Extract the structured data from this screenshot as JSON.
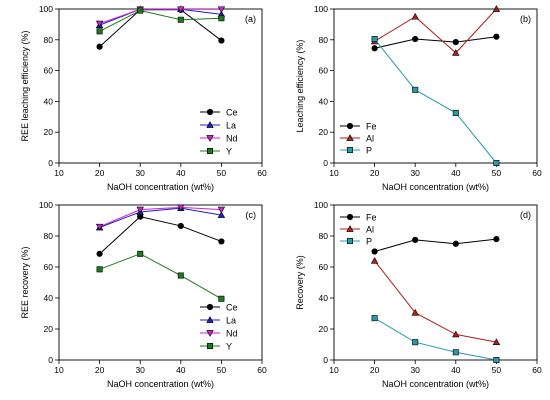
{
  "chart_data": [
    {
      "type": "line",
      "panel_label": "(a)",
      "xlabel": "NaOH concentration (wt%)",
      "ylabel": "REE leaching efficiency (%)",
      "xlim": [
        10,
        60
      ],
      "ylim": [
        0,
        100
      ],
      "xticks": [
        10,
        20,
        30,
        40,
        50,
        60
      ],
      "yticks": [
        0,
        20,
        40,
        60,
        80,
        100
      ],
      "x": [
        20,
        30,
        40,
        50
      ],
      "legend_position": "bottom-right",
      "series": [
        {
          "name": "Ce",
          "values": [
            75.5,
            99.5,
            99.5,
            79.5
          ],
          "color": "#000000",
          "marker": "circle"
        },
        {
          "name": "La",
          "values": [
            89.5,
            99.8,
            99.8,
            96.5
          ],
          "color": "#1f1fc8",
          "marker": "triangle-up"
        },
        {
          "name": "Nd",
          "values": [
            90.5,
            99.8,
            99.8,
            99.8
          ],
          "color": "#cc22cc",
          "marker": "triangle-down"
        },
        {
          "name": "Y",
          "values": [
            85.5,
            99.0,
            93.0,
            94.0
          ],
          "color": "#1e7a1e",
          "marker": "square"
        }
      ]
    },
    {
      "type": "line",
      "panel_label": "(b)",
      "xlabel": "NaOH concentration (wt%)",
      "ylabel": "Leaching efficiency (%)",
      "xlim": [
        10,
        60
      ],
      "ylim": [
        0,
        100
      ],
      "xticks": [
        10,
        20,
        30,
        40,
        50,
        60
      ],
      "yticks": [
        0,
        20,
        40,
        60,
        80,
        100
      ],
      "x": [
        20,
        30,
        40,
        50
      ],
      "legend_position": "bottom-left",
      "series": [
        {
          "name": "Fe",
          "values": [
            74.5,
            80.5,
            78.5,
            82.0
          ],
          "color": "#000000",
          "marker": "circle"
        },
        {
          "name": "Al",
          "values": [
            79.0,
            95.0,
            71.5,
            100.0
          ],
          "color": "#b01e1e",
          "marker": "triangle-up"
        },
        {
          "name": "P",
          "values": [
            80.5,
            47.5,
            32.5,
            0.0
          ],
          "color": "#2a9aa8",
          "marker": "square"
        }
      ]
    },
    {
      "type": "line",
      "panel_label": "(c)",
      "xlabel": "NaOH concentration (wt%)",
      "ylabel": "REE recovery (%)",
      "xlim": [
        10,
        60
      ],
      "ylim": [
        0,
        100
      ],
      "xticks": [
        10,
        20,
        30,
        40,
        50,
        60
      ],
      "yticks": [
        0,
        20,
        40,
        60,
        80,
        100
      ],
      "x": [
        20,
        30,
        40,
        50
      ],
      "legend_position": "bottom-right",
      "series": [
        {
          "name": "Ce",
          "values": [
            68.5,
            92.5,
            86.5,
            76.5
          ],
          "color": "#000000",
          "marker": "circle"
        },
        {
          "name": "La",
          "values": [
            85.5,
            95.5,
            98.0,
            93.5
          ],
          "color": "#1f1fc8",
          "marker": "triangle-up"
        },
        {
          "name": "Nd",
          "values": [
            86.0,
            97.0,
            98.5,
            97.0
          ],
          "color": "#cc22cc",
          "marker": "triangle-down"
        },
        {
          "name": "Y",
          "values": [
            58.5,
            68.5,
            54.5,
            39.5
          ],
          "color": "#1e7a1e",
          "marker": "square"
        }
      ]
    },
    {
      "type": "line",
      "panel_label": "(d)",
      "xlabel": "NaOH concentration (wt%)",
      "ylabel": "Recovery (%)",
      "xlim": [
        10,
        60
      ],
      "ylim": [
        0,
        100
      ],
      "xticks": [
        10,
        20,
        30,
        40,
        50,
        60
      ],
      "yticks": [
        0,
        20,
        40,
        60,
        80,
        100
      ],
      "x": [
        20,
        30,
        40,
        50
      ],
      "legend_position": "top-left",
      "series": [
        {
          "name": "Fe",
          "values": [
            70.0,
            77.5,
            75.0,
            78.0
          ],
          "color": "#000000",
          "marker": "circle"
        },
        {
          "name": "Al",
          "values": [
            64.0,
            30.5,
            16.5,
            11.5
          ],
          "color": "#b01e1e",
          "marker": "triangle-up"
        },
        {
          "name": "P",
          "values": [
            27.0,
            11.5,
            5.0,
            0.0
          ],
          "color": "#2a9aa8",
          "marker": "square"
        }
      ]
    }
  ]
}
